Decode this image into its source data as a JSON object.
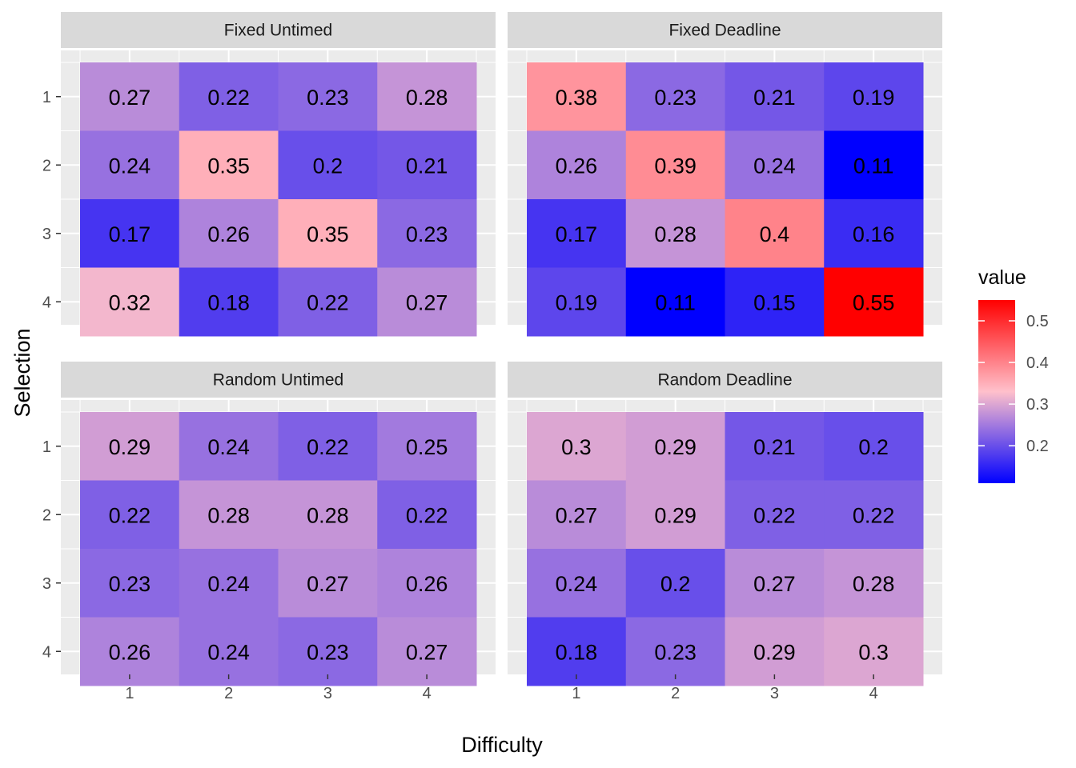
{
  "chart_data": {
    "type": "heatmap",
    "xlabel": "Difficulty",
    "ylabel": "Selection",
    "x_categories": [
      "1",
      "2",
      "3",
      "4"
    ],
    "y_categories": [
      "1",
      "2",
      "3",
      "4"
    ],
    "panels": [
      {
        "title": "Fixed Untimed",
        "values": [
          [
            0.27,
            0.22,
            0.23,
            0.28
          ],
          [
            0.24,
            0.35,
            0.2,
            0.21
          ],
          [
            0.17,
            0.26,
            0.35,
            0.23
          ],
          [
            0.32,
            0.18,
            0.22,
            0.27
          ]
        ]
      },
      {
        "title": "Fixed Deadline",
        "values": [
          [
            0.38,
            0.23,
            0.21,
            0.19
          ],
          [
            0.26,
            0.39,
            0.24,
            0.11
          ],
          [
            0.17,
            0.28,
            0.4,
            0.16
          ],
          [
            0.19,
            0.11,
            0.15,
            0.55
          ]
        ]
      },
      {
        "title": "Random Untimed",
        "values": [
          [
            0.29,
            0.24,
            0.22,
            0.25
          ],
          [
            0.22,
            0.28,
            0.28,
            0.22
          ],
          [
            0.23,
            0.24,
            0.27,
            0.26
          ],
          [
            0.26,
            0.24,
            0.23,
            0.27
          ]
        ]
      },
      {
        "title": "Random Deadline",
        "values": [
          [
            0.3,
            0.29,
            0.21,
            0.2
          ],
          [
            0.27,
            0.29,
            0.22,
            0.22
          ],
          [
            0.24,
            0.2,
            0.27,
            0.28
          ],
          [
            0.18,
            0.23,
            0.29,
            0.3
          ]
        ]
      }
    ],
    "legend": {
      "title": "value",
      "position": "right",
      "ticks": [
        "0.2",
        "0.3",
        "0.4",
        "0.5"
      ],
      "tick_values": [
        0.2,
        0.3,
        0.4,
        0.5
      ],
      "range": [
        0.11,
        0.55
      ],
      "midpoint": 0.33,
      "low_color": "#0000ff",
      "mid_color": "#ffc0cb",
      "high_color": "#ff0000"
    },
    "panel_background": "#ebebeb",
    "strip_background": "#d9d9d9",
    "grid": true
  }
}
